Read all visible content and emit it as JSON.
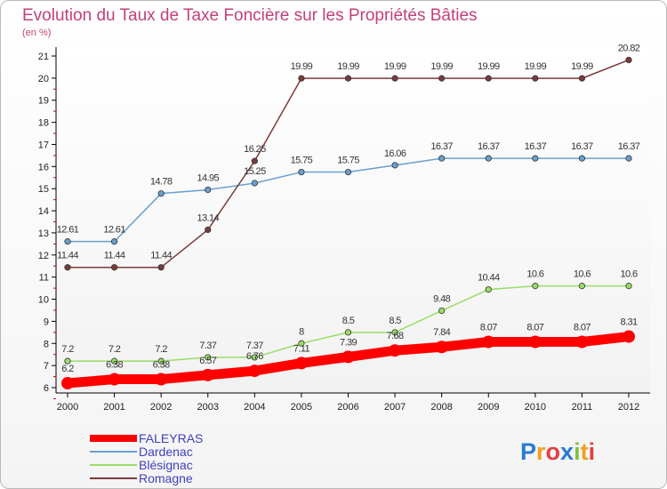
{
  "chart_data": {
    "type": "line",
    "title": "Evolution du Taux de Taxe Foncière sur les Propriétés Bâties",
    "subtitle": "(en %)",
    "x": [
      "2000",
      "2001",
      "2002",
      "2003",
      "2004",
      "2005",
      "2006",
      "2007",
      "2008",
      "2009",
      "2010",
      "2011",
      "2012"
    ],
    "ylim": [
      6,
      21
    ],
    "yticks": [
      6,
      7,
      8,
      9,
      10,
      11,
      12,
      13,
      14,
      15,
      16,
      17,
      18,
      19,
      20,
      21
    ],
    "grid": false,
    "legend_position": "bottom-left",
    "series": [
      {
        "name": "FALEYRAS",
        "color": "#ff0000",
        "values": [
          6.2,
          6.38,
          6.38,
          6.57,
          6.76,
          7.11,
          7.39,
          7.68,
          7.84,
          8.07,
          8.07,
          8.07,
          8.31
        ],
        "labels": [
          "6.2",
          "6.38",
          "6.38",
          "6.57",
          "6.76",
          "7.11",
          "7.39",
          "7.68",
          "7.84",
          "8.07",
          "8.07",
          "8.07",
          "8.31"
        ]
      },
      {
        "name": "Dardenac",
        "color": "#6a9fd0",
        "values": [
          12.61,
          12.61,
          14.78,
          14.95,
          15.25,
          15.75,
          15.75,
          16.06,
          16.37,
          16.37,
          16.37,
          16.37,
          16.37
        ],
        "labels": [
          "12.61",
          "12.61",
          "14.78",
          "14.95",
          "15.25",
          "15.75",
          "15.75",
          "16.06",
          "16.37",
          "16.37",
          "16.37",
          "16.37",
          "16.37"
        ]
      },
      {
        "name": "Blésignac",
        "color": "#99dd66",
        "values": [
          7.2,
          7.2,
          7.2,
          7.37,
          7.37,
          8,
          8.5,
          8.5,
          9.48,
          10.44,
          10.6,
          10.6,
          10.6
        ],
        "labels": [
          "7.2",
          "7.2",
          "7.2",
          "7.37",
          "7.37",
          "8",
          "8.5",
          "8.5",
          "9.48",
          "10.44",
          "10.6",
          "10.6",
          "10.6"
        ]
      },
      {
        "name": "Romagne",
        "color": "#7b3a3a",
        "values": [
          11.44,
          11.44,
          11.44,
          13.14,
          16.25,
          19.99,
          19.99,
          19.99,
          19.99,
          19.99,
          19.99,
          19.99,
          20.82
        ],
        "labels": [
          "11.44",
          "11.44",
          "11.44",
          "13.14",
          "16.25",
          "19.99",
          "19.99",
          "19.99",
          "19.99",
          "19.99",
          "19.99",
          "19.99",
          "20.82"
        ]
      }
    ]
  },
  "logo": {
    "text": "Proxiti"
  }
}
